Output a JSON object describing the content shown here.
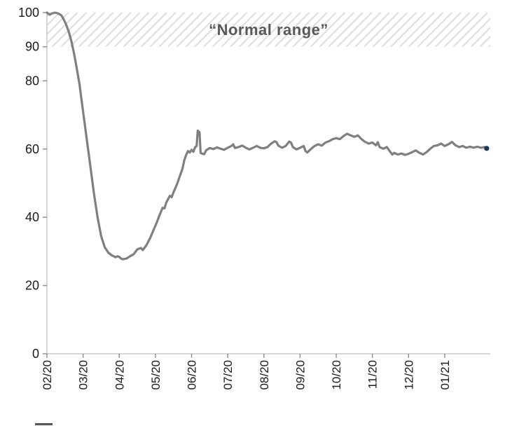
{
  "chart_data": {
    "type": "line",
    "title": "",
    "normal_range_label": "“Normal range”",
    "normal_range_band": {
      "from": 90,
      "to": 100
    },
    "x_tick_labels": [
      "02/20",
      "03/20",
      "04/20",
      "05/20",
      "06/20",
      "07/20",
      "08/20",
      "09/20",
      "10/20",
      "11/20",
      "12/20",
      "01/21"
    ],
    "y_ticks": [
      0,
      20,
      40,
      60,
      80,
      90,
      100
    ],
    "ylim": [
      0,
      100
    ],
    "x_domain_months": [
      0,
      12.26
    ],
    "grid": false,
    "legend_position": "none",
    "series": [
      {
        "name": "index-line",
        "color": "#7f7f7f",
        "width": 3.2,
        "points": [
          [
            0,
            100
          ],
          [
            0.08,
            99.4
          ],
          [
            0.15,
            99.8
          ],
          [
            0.22,
            100
          ],
          [
            0.3,
            99.8
          ],
          [
            0.4,
            99.2
          ],
          [
            0.45,
            98.3
          ],
          [
            0.52,
            96.8
          ],
          [
            0.6,
            94.5
          ],
          [
            0.68,
            91.5
          ],
          [
            0.75,
            88
          ],
          [
            0.82,
            84
          ],
          [
            0.9,
            79
          ],
          [
            1.0,
            71
          ],
          [
            1.1,
            63
          ],
          [
            1.2,
            55
          ],
          [
            1.3,
            47
          ],
          [
            1.4,
            40
          ],
          [
            1.5,
            34.5
          ],
          [
            1.6,
            31.2
          ],
          [
            1.7,
            29.6
          ],
          [
            1.8,
            28.8
          ],
          [
            1.9,
            28.3
          ],
          [
            1.95,
            28.6
          ],
          [
            2.0,
            28.4
          ],
          [
            2.05,
            27.9
          ],
          [
            2.1,
            27.7
          ],
          [
            2.2,
            27.9
          ],
          [
            2.3,
            28.6
          ],
          [
            2.4,
            29.2
          ],
          [
            2.5,
            30.6
          ],
          [
            2.6,
            31
          ],
          [
            2.65,
            30.4
          ],
          [
            2.75,
            31.8
          ],
          [
            2.85,
            33.8
          ],
          [
            2.95,
            36.3
          ],
          [
            3.05,
            38.8
          ],
          [
            3.1,
            40.3
          ],
          [
            3.2,
            42.8
          ],
          [
            3.25,
            42.6
          ],
          [
            3.3,
            44.3
          ],
          [
            3.4,
            46.3
          ],
          [
            3.45,
            45.9
          ],
          [
            3.5,
            47.3
          ],
          [
            3.6,
            49.8
          ],
          [
            3.7,
            52.8
          ],
          [
            3.75,
            54.3
          ],
          [
            3.8,
            56.8
          ],
          [
            3.85,
            58.3
          ],
          [
            3.9,
            59.4
          ],
          [
            3.95,
            59
          ],
          [
            4.0,
            59.8
          ],
          [
            4.05,
            59.2
          ],
          [
            4.1,
            60.6
          ],
          [
            4.14,
            60.9
          ],
          [
            4.17,
            65.4
          ],
          [
            4.22,
            64.9
          ],
          [
            4.25,
            58.9
          ],
          [
            4.3,
            58.6
          ],
          [
            4.35,
            58.5
          ],
          [
            4.4,
            59.6
          ],
          [
            4.5,
            60.3
          ],
          [
            4.6,
            60
          ],
          [
            4.7,
            60.5
          ],
          [
            4.8,
            60.1
          ],
          [
            4.9,
            59.8
          ],
          [
            5.0,
            60.4
          ],
          [
            5.1,
            60.9
          ],
          [
            5.15,
            61.4
          ],
          [
            5.2,
            60.3
          ],
          [
            5.3,
            60.6
          ],
          [
            5.4,
            61
          ],
          [
            5.5,
            60.4
          ],
          [
            5.6,
            59.9
          ],
          [
            5.7,
            60.4
          ],
          [
            5.8,
            60.9
          ],
          [
            5.9,
            60.4
          ],
          [
            6.0,
            60.2
          ],
          [
            6.1,
            60.6
          ],
          [
            6.2,
            61.6
          ],
          [
            6.3,
            62.3
          ],
          [
            6.35,
            62
          ],
          [
            6.4,
            61
          ],
          [
            6.5,
            60.4
          ],
          [
            6.6,
            60.9
          ],
          [
            6.7,
            62.2
          ],
          [
            6.75,
            61.9
          ],
          [
            6.8,
            60.6
          ],
          [
            6.9,
            59.9
          ],
          [
            7.0,
            60.4
          ],
          [
            7.1,
            60.9
          ],
          [
            7.15,
            59.4
          ],
          [
            7.2,
            59
          ],
          [
            7.3,
            60
          ],
          [
            7.4,
            60.9
          ],
          [
            7.5,
            61.4
          ],
          [
            7.6,
            61
          ],
          [
            7.7,
            61.9
          ],
          [
            7.8,
            62.3
          ],
          [
            7.9,
            62.9
          ],
          [
            8.0,
            63.2
          ],
          [
            8.1,
            62.9
          ],
          [
            8.2,
            63.8
          ],
          [
            8.3,
            64.5
          ],
          [
            8.4,
            64
          ],
          [
            8.5,
            63.6
          ],
          [
            8.6,
            64
          ],
          [
            8.7,
            62.9
          ],
          [
            8.8,
            62.1
          ],
          [
            8.9,
            61.6
          ],
          [
            9.0,
            61.9
          ],
          [
            9.1,
            61.1
          ],
          [
            9.15,
            62
          ],
          [
            9.2,
            60.6
          ],
          [
            9.3,
            60.1
          ],
          [
            9.4,
            60.6
          ],
          [
            9.5,
            59.1
          ],
          [
            9.55,
            58.4
          ],
          [
            9.6,
            58.9
          ],
          [
            9.7,
            58.4
          ],
          [
            9.8,
            58.7
          ],
          [
            9.9,
            58.3
          ],
          [
            10.0,
            58.6
          ],
          [
            10.1,
            59.1
          ],
          [
            10.2,
            59.6
          ],
          [
            10.3,
            58.9
          ],
          [
            10.4,
            58.4
          ],
          [
            10.5,
            59.1
          ],
          [
            10.6,
            60.1
          ],
          [
            10.7,
            60.9
          ],
          [
            10.8,
            61.1
          ],
          [
            10.9,
            61.6
          ],
          [
            11.0,
            60.9
          ],
          [
            11.1,
            61.4
          ],
          [
            11.2,
            62.1
          ],
          [
            11.3,
            61.1
          ],
          [
            11.4,
            60.6
          ],
          [
            11.5,
            60.9
          ],
          [
            11.6,
            60.4
          ],
          [
            11.7,
            60.7
          ],
          [
            11.8,
            60.4
          ],
          [
            11.9,
            60.7
          ],
          [
            12.0,
            60.4
          ],
          [
            12.1,
            60.6
          ],
          [
            12.16,
            60.2
          ]
        ]
      }
    ],
    "endpoint_marker": {
      "x": 12.16,
      "y": 60.2,
      "color": "#17375e"
    },
    "colors": {
      "axis": "#bfbfbf",
      "tick": "#8c8c8c",
      "tick_label": "#1a1a1a",
      "band_stripe": "#d9d9d9",
      "band_label": "#595959",
      "legend_fragment": "#595959"
    }
  }
}
